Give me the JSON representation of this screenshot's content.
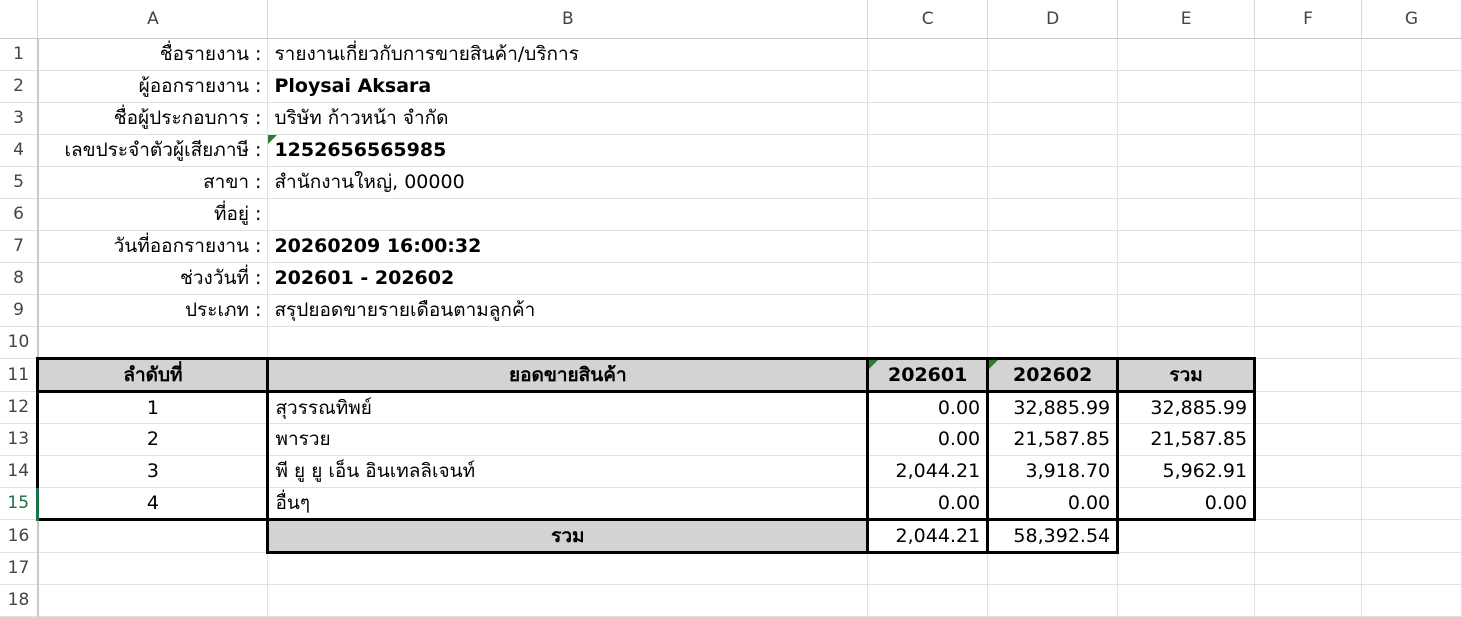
{
  "columns": [
    "A",
    "B",
    "C",
    "D",
    "E",
    "F",
    "G"
  ],
  "row_numbers": [
    "1",
    "2",
    "3",
    "4",
    "5",
    "6",
    "7",
    "8",
    "9",
    "10",
    "11",
    "12",
    "13",
    "14",
    "15",
    "16",
    "17",
    "18"
  ],
  "selected_row": "15",
  "info": [
    {
      "label": "ชื่อรายงาน :",
      "value": "รายงานเกี่ยวกับการขายสินค้า/บริการ",
      "bold": false
    },
    {
      "label": "ผู้ออกรายงาน :",
      "value": "Ploysai Aksara",
      "bold": true
    },
    {
      "label": "ชื่อผู้ประกอบการ :",
      "value": "บริษัท ก้าวหน้า จำกัด",
      "bold": false
    },
    {
      "label": "เลขประจำตัวผู้เสียภาษี :",
      "value": "1252656565985",
      "bold": true
    },
    {
      "label": "สาขา :",
      "value": "สำนักงานใหญ่, 00000",
      "bold": false
    },
    {
      "label": "ที่อยู่ :",
      "value": "",
      "bold": false
    },
    {
      "label": "วันที่ออกรายงาน :",
      "value": "20260209 16:00:32",
      "bold": true
    },
    {
      "label": "ช่วงวันที่ :",
      "value": "202601 - 202602",
      "bold": true
    },
    {
      "label": "ประเภท :",
      "value": "สรุปยอดขายรายเดือนตามลูกค้า",
      "bold": false
    }
  ],
  "table": {
    "headers": [
      "ลำดับที่",
      "ยอดขายสินค้า",
      "202601",
      "202602",
      "รวม"
    ],
    "rows": [
      [
        "1",
        "สุวรรณทิพย์",
        "0.00",
        "32,885.99",
        "32,885.99"
      ],
      [
        "2",
        "พารวย",
        "0.00",
        "21,587.85",
        "21,587.85"
      ],
      [
        "3",
        "พี ยู ยู เอ็น อินเทลลิเจนท์",
        "2,044.21",
        "3,918.70",
        "5,962.91"
      ],
      [
        "4",
        "อื่นๆ",
        "0.00",
        "0.00",
        "0.00"
      ]
    ],
    "total": {
      "label": "รวม",
      "values": [
        "2,044.21",
        "58,392.54"
      ]
    }
  },
  "colors": {
    "header_fill": "#d3d3d3",
    "selection": "#1e7145",
    "comment_marker": "#2e7d32"
  }
}
